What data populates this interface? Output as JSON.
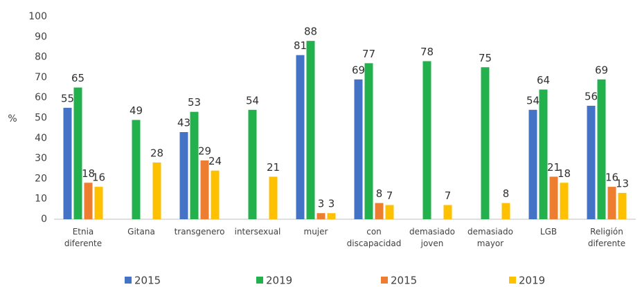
{
  "chart_data": {
    "type": "bar",
    "y_label": "%",
    "categories": [
      "Etnia\ndiferente",
      "Gitana",
      "transgenero",
      "intersexual",
      "mujer",
      "con\ndiscapacidad",
      "demasiado\njoven",
      "demasiado\nmayor",
      "LGB",
      "Religión\ndiferente"
    ],
    "series": [
      {
        "name": "2015",
        "color": "#4472c4",
        "values": [
          55,
          null,
          43,
          null,
          81,
          69,
          null,
          null,
          54,
          56
        ]
      },
      {
        "name": "2019",
        "color": "#22b14c",
        "values": [
          65,
          49,
          53,
          54,
          88,
          77,
          78,
          75,
          64,
          69
        ]
      },
      {
        "name": "2015",
        "color": "#ed7d31",
        "values": [
          18,
          null,
          29,
          null,
          3,
          8,
          null,
          null,
          21,
          16
        ]
      },
      {
        "name": "2019",
        "color": "#ffc000",
        "values": [
          16,
          28,
          24,
          21,
          3,
          7,
          7,
          8,
          18,
          13
        ]
      }
    ],
    "ylim": [
      0,
      100
    ],
    "yticks": [
      0,
      10,
      20,
      30,
      40,
      50,
      60,
      70,
      80,
      90,
      100
    ],
    "grid": false,
    "legend": "bottom"
  }
}
